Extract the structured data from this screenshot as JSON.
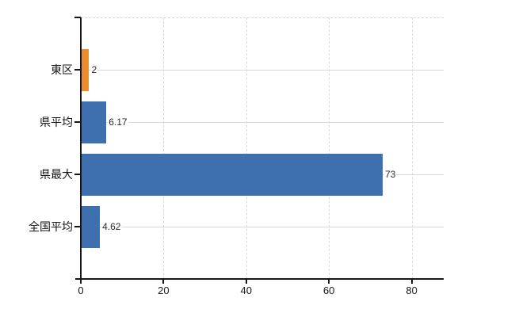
{
  "chart_data": {
    "type": "bar",
    "orientation": "horizontal",
    "title": "",
    "xlabel": "",
    "ylabel": "",
    "categories": [
      "東区",
      "県平均",
      "県最大",
      "全国平均"
    ],
    "values": [
      2,
      6.17,
      73,
      4.62
    ],
    "value_labels": [
      "2",
      "6.17",
      "73",
      "4.62"
    ],
    "bar_colors": [
      "#ea8c30",
      "#3e6fae",
      "#3e6fae",
      "#3e6fae"
    ],
    "highlight_category": "東区",
    "x_ticks": [
      0,
      20,
      40,
      60,
      80
    ],
    "x_tick_labels": [
      "0",
      "20",
      "40",
      "60",
      "80"
    ],
    "xlim": [
      0,
      87.75
    ],
    "legend": null,
    "grid": {
      "vertical_lines": "dashed",
      "horizontal_category_lines": "solid",
      "top_border": "dashed",
      "right_border": "none"
    }
  },
  "colors": {
    "background": "#ffffff",
    "bar_blue": "#3e6fae",
    "bar_orange": "#ea8c30",
    "axis": "#161616",
    "grid_horizontal": "#d4dad4",
    "grid_vertical": "#d9d9d9",
    "category_text": "#161616",
    "tick_text": "#161616",
    "value_text": "#2b2b2b"
  }
}
